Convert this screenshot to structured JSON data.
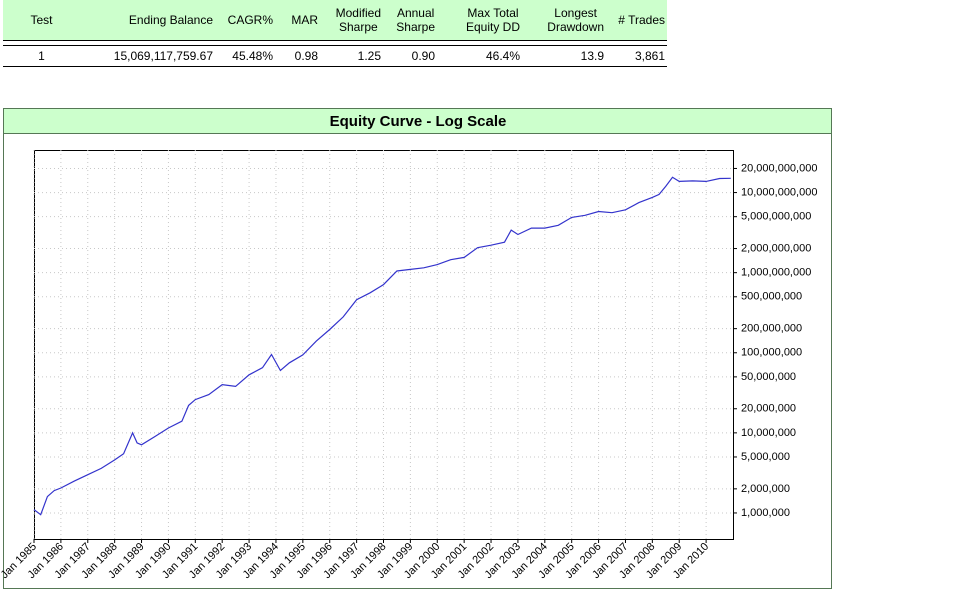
{
  "table": {
    "header": [
      "Test",
      "Ending Balance",
      "CAGR%",
      "MAR",
      "Modified\nSharpe",
      "Annual\nSharpe",
      "Max Total\nEquity DD",
      "Longest\nDrawdown",
      "# Trades"
    ],
    "rows": [
      [
        "1",
        "15,069,117,759.67",
        "45.48%",
        "0.98",
        "1.25",
        "0.90",
        "46.4%",
        "13.9",
        "3,861"
      ]
    ]
  },
  "chart_data": {
    "type": "line",
    "title": "Equity Curve - Log Scale",
    "log_scale": true,
    "grid": true,
    "xlim": [
      "1985-01",
      "2010-12"
    ],
    "xticks": [
      {
        "value": "1985-01",
        "label": "Jan 1985"
      },
      {
        "value": "1986-01",
        "label": "Jan 1986"
      },
      {
        "value": "1987-01",
        "label": "Jan 1987"
      },
      {
        "value": "1988-01",
        "label": "Jan 1988"
      },
      {
        "value": "1989-01",
        "label": "Jan 1989"
      },
      {
        "value": "1990-01",
        "label": "Jan 1990"
      },
      {
        "value": "1991-01",
        "label": "Jan 1991"
      },
      {
        "value": "1992-01",
        "label": "Jan 1992"
      },
      {
        "value": "1993-01",
        "label": "Jan 1993"
      },
      {
        "value": "1994-01",
        "label": "Jan 1994"
      },
      {
        "value": "1995-01",
        "label": "Jan 1995"
      },
      {
        "value": "1996-01",
        "label": "Jan 1996"
      },
      {
        "value": "1997-01",
        "label": "Jan 1997"
      },
      {
        "value": "1998-01",
        "label": "Jan 1998"
      },
      {
        "value": "1999-01",
        "label": "Jan 1999"
      },
      {
        "value": "2000-01",
        "label": "Jan 2000"
      },
      {
        "value": "2001-01",
        "label": "Jan 2001"
      },
      {
        "value": "2002-01",
        "label": "Jan 2002"
      },
      {
        "value": "2003-01",
        "label": "Jan 2003"
      },
      {
        "value": "2004-01",
        "label": "Jan 2004"
      },
      {
        "value": "2005-01",
        "label": "Jan 2005"
      },
      {
        "value": "2006-01",
        "label": "Jan 2006"
      },
      {
        "value": "2007-01",
        "label": "Jan 2007"
      },
      {
        "value": "2008-01",
        "label": "Jan 2008"
      },
      {
        "value": "2009-01",
        "label": "Jan 2009"
      },
      {
        "value": "2010-01",
        "label": "Jan 2010"
      }
    ],
    "ylim": [
      473000,
      34000000000
    ],
    "yticks": [
      {
        "value": 1000000,
        "label": "1,000,000"
      },
      {
        "value": 2000000,
        "label": "2,000,000"
      },
      {
        "value": 5000000,
        "label": "5,000,000"
      },
      {
        "value": 10000000,
        "label": "10,000,000"
      },
      {
        "value": 20000000,
        "label": "20,000,000"
      },
      {
        "value": 50000000,
        "label": "50,000,000"
      },
      {
        "value": 100000000,
        "label": "100,000,000"
      },
      {
        "value": 200000000,
        "label": "200,000,000"
      },
      {
        "value": 500000000,
        "label": "500,000,000"
      },
      {
        "value": 1000000000,
        "label": "1,000,000,000"
      },
      {
        "value": 2000000000,
        "label": "2,000,000,000"
      },
      {
        "value": 5000000000,
        "label": "5,000,000,000"
      },
      {
        "value": 10000000000,
        "label": "10,000,000,000"
      },
      {
        "value": 20000000000,
        "label": "20,000,000,000"
      }
    ],
    "series": [
      {
        "color": "#3333cc",
        "x": [
          "1985-01",
          "1985-04",
          "1985-07",
          "1985-10",
          "1986-01",
          "1986-07",
          "1987-01",
          "1987-07",
          "1988-01",
          "1988-05",
          "1988-09",
          "1988-11",
          "1989-01",
          "1989-07",
          "1990-01",
          "1990-07",
          "1990-10",
          "1991-01",
          "1991-07",
          "1992-01",
          "1992-07",
          "1993-01",
          "1993-07",
          "1993-11",
          "1994-03",
          "1994-07",
          "1995-01",
          "1995-07",
          "1996-01",
          "1996-07",
          "1997-01",
          "1997-07",
          "1998-01",
          "1998-07",
          "1999-01",
          "1999-07",
          "2000-01",
          "2000-07",
          "2001-01",
          "2001-07",
          "2002-01",
          "2002-07",
          "2002-10",
          "2003-01",
          "2003-07",
          "2004-01",
          "2004-07",
          "2005-01",
          "2005-07",
          "2006-01",
          "2006-07",
          "2007-01",
          "2007-07",
          "2008-01",
          "2008-04",
          "2008-07",
          "2008-10",
          "2009-01",
          "2009-07",
          "2010-01",
          "2010-07",
          "2010-12"
        ],
        "values": [
          1100000,
          950000,
          1600000,
          1900000,
          2050000,
          2500000,
          3000000,
          3600000,
          4600000,
          5500000,
          10000000,
          7500000,
          7100000,
          9000000,
          11500000,
          14000000,
          22000000,
          26000000,
          30000000,
          40000000,
          38000000,
          53000000,
          65000000,
          95000000,
          60000000,
          75000000,
          94000000,
          140000000,
          195000000,
          280000000,
          460000000,
          560000000,
          710000000,
          1050000000,
          1100000000,
          1150000000,
          1260000000,
          1450000000,
          1550000000,
          2050000000,
          2200000000,
          2400000000,
          3400000000,
          3000000000,
          3600000000,
          3600000000,
          3900000000,
          4900000000,
          5200000000,
          5800000000,
          5600000000,
          6100000000,
          7500000000,
          8700000000,
          9500000000,
          12000000000,
          15500000000,
          13800000000,
          14000000000,
          13800000000,
          15000000000,
          15069000000
        ]
      }
    ]
  }
}
